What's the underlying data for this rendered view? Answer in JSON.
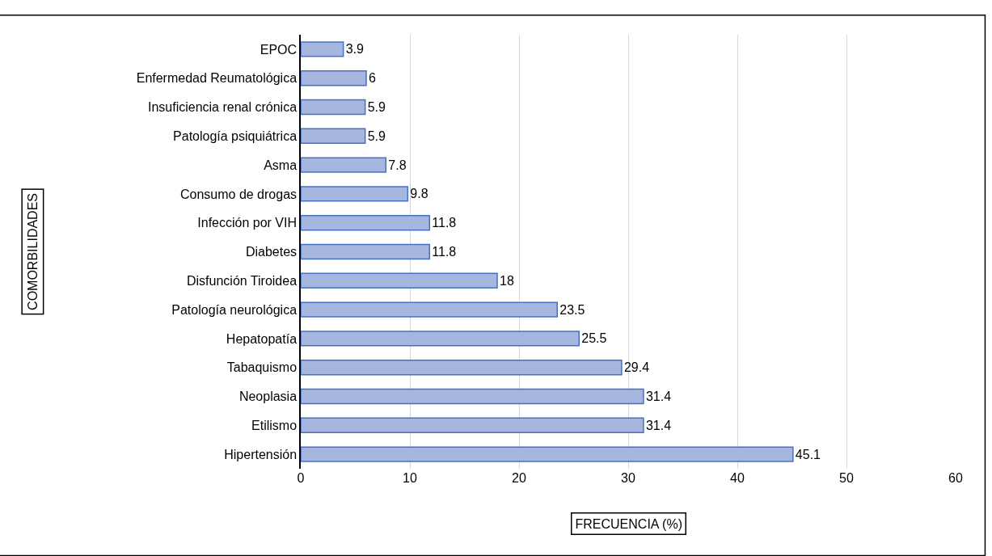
{
  "chart_data": {
    "type": "bar",
    "orientation": "horizontal",
    "xlabel": "FRECUENCIA (%)",
    "annotations": [
      "COMORBILIDADES"
    ],
    "categories": [
      "EPOC",
      "Enfermedad Reumatológica",
      "Insuficiencia renal crónica",
      "Patología psiquiátrica",
      "Asma",
      "Consumo de drogas",
      "Infección por VIH",
      "Diabetes",
      "Disfunción Tiroidea",
      "Patología neurológica",
      "Hepatopatía",
      "Tabaquismo",
      "Neoplasia",
      "Etilismo",
      "Hipertensión"
    ],
    "values": [
      3.9,
      6,
      5.9,
      5.9,
      7.8,
      9.8,
      11.8,
      11.8,
      18,
      23.5,
      25.5,
      29.4,
      31.4,
      31.4,
      45.1
    ],
    "color": "#a6b6df",
    "xlim": [
      0,
      60
    ],
    "xticks": [
      0,
      10,
      20,
      30,
      40,
      50,
      60
    ],
    "grid": "x",
    "data_labels": true,
    "legend": false
  }
}
